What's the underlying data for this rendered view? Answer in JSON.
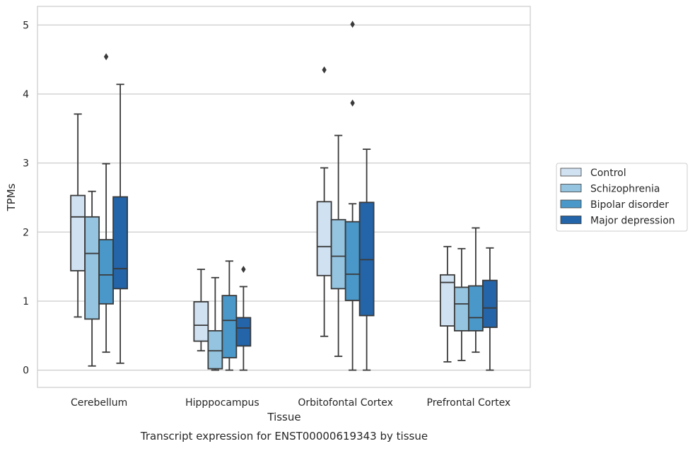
{
  "caption": "Transcript expression for ENST00000619343 by tissue",
  "chart_data": {
    "type": "boxplot",
    "title": "",
    "xlabel": "Tissue",
    "ylabel": "TPMs",
    "ylim": [
      -0.25,
      5.27
    ],
    "yticks": [
      0,
      1,
      2,
      3,
      4,
      5
    ],
    "grid": true,
    "legend_position": "right",
    "categories": [
      "Cerebellum",
      "Hipppocampus",
      "Orbitofontal Cortex",
      "Prefrontal Cortex"
    ],
    "series": [
      {
        "name": "Control",
        "color": "#d0e1f2",
        "boxes": [
          {
            "whislo": 0.77,
            "q1": 1.44,
            "med": 2.22,
            "q3": 2.53,
            "whishi": 3.71,
            "fliers": []
          },
          {
            "whislo": 0.28,
            "q1": 0.42,
            "med": 0.65,
            "q3": 0.99,
            "whishi": 1.46,
            "fliers": []
          },
          {
            "whislo": 0.49,
            "q1": 1.37,
            "med": 1.79,
            "q3": 2.44,
            "whishi": 2.93,
            "fliers": [
              4.35
            ]
          },
          {
            "whislo": 0.12,
            "q1": 0.64,
            "med": 1.27,
            "q3": 1.38,
            "whishi": 1.79,
            "fliers": []
          }
        ]
      },
      {
        "name": "Schizophrenia",
        "color": "#94c4df",
        "boxes": [
          {
            "whislo": 0.06,
            "q1": 0.74,
            "med": 1.69,
            "q3": 2.22,
            "whishi": 2.59,
            "fliers": []
          },
          {
            "whislo": 0.0,
            "q1": 0.02,
            "med": 0.28,
            "q3": 0.57,
            "whishi": 1.34,
            "fliers": []
          },
          {
            "whislo": 0.2,
            "q1": 1.18,
            "med": 1.65,
            "q3": 2.18,
            "whishi": 3.4,
            "fliers": []
          },
          {
            "whislo": 0.14,
            "q1": 0.57,
            "med": 0.96,
            "q3": 1.2,
            "whishi": 1.76,
            "fliers": []
          }
        ]
      },
      {
        "name": "Bipolar disorder",
        "color": "#4a98c9",
        "boxes": [
          {
            "whislo": 0.26,
            "q1": 0.96,
            "med": 1.38,
            "q3": 1.89,
            "whishi": 2.99,
            "fliers": [
              4.54
            ]
          },
          {
            "whislo": 0.0,
            "q1": 0.18,
            "med": 0.72,
            "q3": 1.08,
            "whishi": 1.58,
            "fliers": []
          },
          {
            "whislo": 0.0,
            "q1": 1.01,
            "med": 1.39,
            "q3": 2.15,
            "whishi": 2.41,
            "fliers": [
              3.87,
              5.01
            ]
          },
          {
            "whislo": 0.26,
            "q1": 0.57,
            "med": 0.76,
            "q3": 1.22,
            "whishi": 2.06,
            "fliers": []
          }
        ]
      },
      {
        "name": "Major depression",
        "color": "#2464a8",
        "boxes": [
          {
            "whislo": 0.1,
            "q1": 1.18,
            "med": 1.47,
            "q3": 2.51,
            "whishi": 4.14,
            "fliers": []
          },
          {
            "whislo": 0.0,
            "q1": 0.35,
            "med": 0.61,
            "q3": 0.76,
            "whishi": 1.21,
            "fliers": [
              1.46
            ]
          },
          {
            "whislo": 0.0,
            "q1": 0.79,
            "med": 1.6,
            "q3": 2.43,
            "whishi": 3.2,
            "fliers": []
          },
          {
            "whislo": 0.0,
            "q1": 0.62,
            "med": 0.9,
            "q3": 1.3,
            "whishi": 1.77,
            "fliers": []
          }
        ]
      }
    ]
  }
}
